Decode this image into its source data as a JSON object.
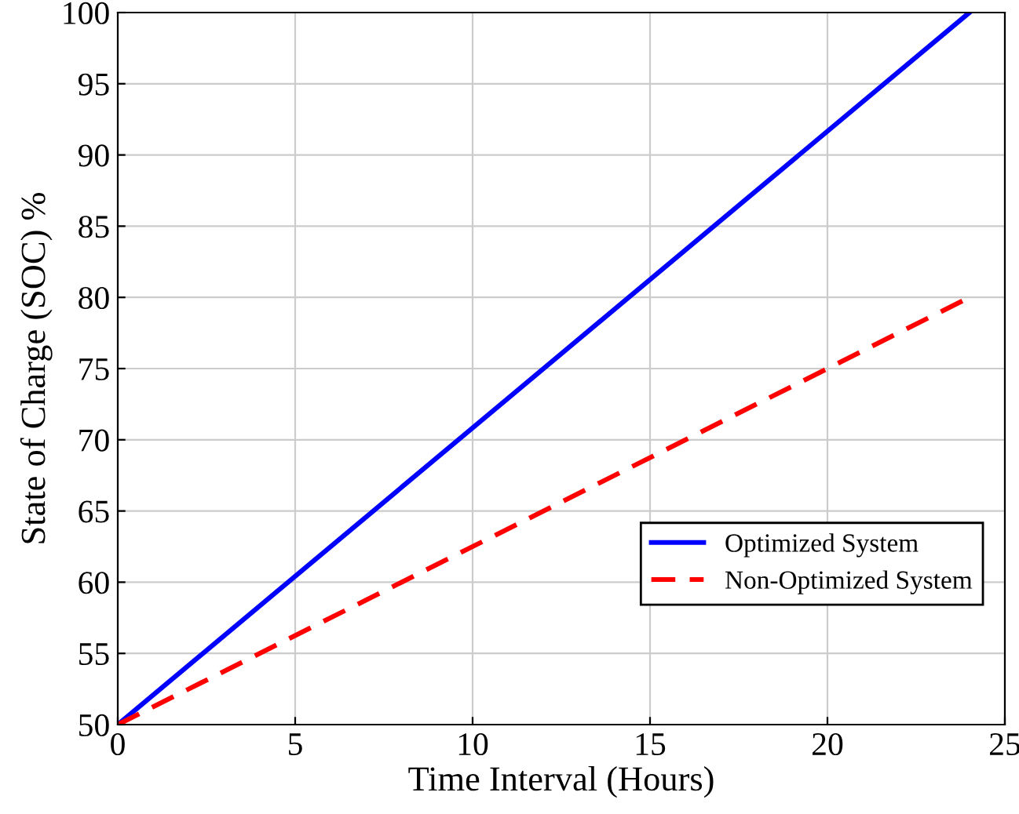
{
  "chart_data": {
    "type": "line",
    "xlabel": "Time Interval (Hours)",
    "ylabel": "State of Charge (SOC) %",
    "x": [
      0,
      24
    ],
    "series": [
      {
        "name": "Optimized System",
        "color": "#0000ff",
        "values": [
          50,
          100
        ],
        "line_style": "solid"
      },
      {
        "name": "Non-Optimized System",
        "color": "#ff0000",
        "values": [
          50,
          80
        ],
        "line_style": "dashed"
      }
    ],
    "xlim": [
      0,
      25
    ],
    "xticks": [
      0,
      5,
      10,
      15,
      20,
      25
    ],
    "ylim": [
      50,
      100
    ],
    "yticks": [
      50,
      55,
      60,
      65,
      70,
      75,
      80,
      85,
      90,
      95,
      100
    ],
    "grid": true,
    "legend": "lower right"
  }
}
